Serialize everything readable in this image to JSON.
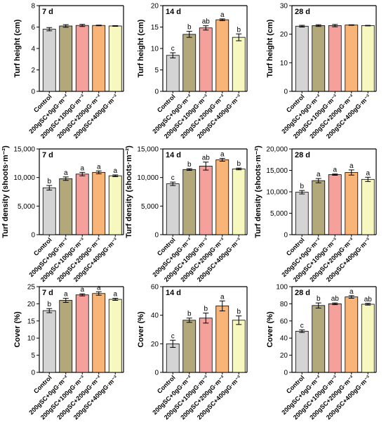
{
  "colors": [
    "#d4d4d4",
    "#b3a87a",
    "#f6a09c",
    "#f9b577",
    "#f7f7c0"
  ],
  "chart_data": [
    {
      "type": "bar",
      "row": 0,
      "col": 0,
      "panel_label": "7 d",
      "ylabel": "Turf height (cm)",
      "ylim": [
        0,
        8
      ],
      "yticks": [
        "0",
        "2",
        "4",
        "6",
        "8"
      ],
      "categories": [
        "Control",
        "200gSC+0gG·m⁻²",
        "200gSC+100gG·m⁻²",
        "200gSC+200gG·m⁻²",
        "200gSC+400gG·m⁻²"
      ],
      "values": [
        5.8,
        6.1,
        6.15,
        6.15,
        6.1
      ],
      "errors": [
        0.15,
        0.12,
        0.1,
        0.03,
        0.03
      ],
      "letters": [
        "",
        "",
        "",
        "",
        ""
      ]
    },
    {
      "type": "bar",
      "row": 0,
      "col": 1,
      "panel_label": "14 d",
      "ylabel": "Turf height (cm)",
      "ylim": [
        0,
        20
      ],
      "yticks": [
        "0",
        "5",
        "10",
        "15",
        "20"
      ],
      "categories": [
        "Control",
        "200gSC+0gG·m⁻²",
        "200gSC+100gG·m⁻²",
        "200gSC+200gG·m⁻²",
        "200gSC+400gG·m⁻²"
      ],
      "values": [
        8.4,
        13.3,
        14.8,
        16.7,
        12.6
      ],
      "errors": [
        0.6,
        0.7,
        0.5,
        0.2,
        0.8
      ],
      "letters": [
        "c",
        "b",
        "ab",
        "a",
        "b"
      ]
    },
    {
      "type": "bar",
      "row": 0,
      "col": 2,
      "panel_label": "28 d",
      "ylabel": "Turf height (cm)",
      "ylim": [
        0,
        30
      ],
      "yticks": [
        "0",
        "10",
        "20",
        "30"
      ],
      "categories": [
        "Control",
        "200gSC+0gG·m⁻²",
        "200gSC+100gG·m⁻²",
        "200gSC+200gG·m⁻²",
        "200gSC+400gG·m⁻²"
      ],
      "values": [
        22.8,
        23.0,
        23.0,
        23.2,
        23.0
      ],
      "errors": [
        0.3,
        0.3,
        0.4,
        0.1,
        0.1
      ],
      "letters": [
        "",
        "",
        "",
        "",
        ""
      ]
    },
    {
      "type": "bar",
      "row": 1,
      "col": 0,
      "panel_label": "7 d",
      "ylabel": "Turf density (shoots·m⁻²)",
      "ylim": [
        0,
        15000
      ],
      "yticks": [
        "0",
        "5,000",
        "10,000",
        "15,000"
      ],
      "categories": [
        "Control",
        "200gSC+0gG·m⁻²",
        "200gSC+100gG·m⁻²",
        "200gSC+200gG·m⁻²",
        "200gSC+400gG·m⁻²"
      ],
      "values": [
        8200,
        9800,
        10600,
        10900,
        10300
      ],
      "errors": [
        400,
        300,
        300,
        250,
        150
      ],
      "letters": [
        "b",
        "a",
        "a",
        "a",
        "a"
      ]
    },
    {
      "type": "bar",
      "row": 1,
      "col": 1,
      "panel_label": "14 d",
      "ylabel": "Turf density (shoots·m⁻²)",
      "ylim": [
        0,
        15000
      ],
      "yticks": [
        "0",
        "5,000",
        "10,000",
        "15,000"
      ],
      "categories": [
        "Control",
        "200gSC+0gG·m⁻²",
        "200gSC+100gG·m⁻²",
        "200gSC+200gG·m⁻²",
        "200gSC+400gG·m⁻²"
      ],
      "values": [
        8900,
        11400,
        12000,
        13100,
        11500
      ],
      "errors": [
        300,
        150,
        700,
        250,
        150
      ],
      "letters": [
        "c",
        "b",
        "ab",
        "a",
        "b"
      ]
    },
    {
      "type": "bar",
      "row": 1,
      "col": 2,
      "panel_label": "28 d",
      "ylabel": "Turf density (shoots·m⁻²)",
      "ylim": [
        0,
        20000
      ],
      "yticks": [
        "0",
        "5,000",
        "10,000",
        "15,000",
        "20,000"
      ],
      "categories": [
        "Control",
        "200gSC+0gG·m⁻²",
        "200gSC+100gG·m⁻²",
        "200gSC+200gG·m⁻²",
        "200gSC+400gG·m⁻²"
      ],
      "values": [
        9900,
        12600,
        14000,
        14500,
        12900
      ],
      "errors": [
        400,
        500,
        150,
        600,
        500
      ],
      "letters": [
        "b",
        "a",
        "a",
        "a",
        "a"
      ]
    },
    {
      "type": "bar",
      "row": 2,
      "col": 0,
      "panel_label": "7 d",
      "ylabel": "Cover (%)",
      "ylim": [
        0,
        25
      ],
      "yticks": [
        "0",
        "5",
        "10",
        "15",
        "20",
        "25"
      ],
      "categories": [
        "Control",
        "200gSC+0gG·m⁻²",
        "200gSC+100gG·m⁻²",
        "200gSC+200gG·m⁻²",
        "200gSC+400gG·m⁻²"
      ],
      "values": [
        18,
        21,
        22.6,
        23,
        21.3
      ],
      "errors": [
        0.6,
        0.6,
        0.3,
        0.5,
        0.3
      ],
      "letters": [
        "b",
        "a",
        "a",
        "a",
        "a"
      ]
    },
    {
      "type": "bar",
      "row": 2,
      "col": 1,
      "panel_label": "14 d",
      "ylabel": "Cover (%)",
      "ylim": [
        0,
        60
      ],
      "yticks": [
        "0",
        "20",
        "40",
        "60"
      ],
      "categories": [
        "Control",
        "200gSC+0gG·m⁻²",
        "200gSC+100gG·m⁻²",
        "200gSC+200gG·m⁻²",
        "200gSC+400gG·m⁻²"
      ],
      "values": [
        20,
        36.5,
        38,
        46.5,
        36.5
      ],
      "errors": [
        2.5,
        1.5,
        3.5,
        3.5,
        3.0
      ],
      "letters": [
        "c",
        "b",
        "b",
        "a",
        "b"
      ]
    },
    {
      "type": "bar",
      "row": 2,
      "col": 2,
      "panel_label": "28 d",
      "ylabel": "Cover (%)",
      "ylim": [
        0,
        100
      ],
      "yticks": [
        "0",
        "20",
        "40",
        "60",
        "80",
        "100"
      ],
      "categories": [
        "Control",
        "200gSC+0gG·m⁻²",
        "200gSC+100gG·m⁻²",
        "200gSC+200gG·m⁻²",
        "200gSC+400gG·m⁻²"
      ],
      "values": [
        48,
        78,
        80,
        88,
        79.5
      ],
      "errors": [
        1.5,
        3,
        1,
        1.5,
        1
      ],
      "letters": [
        "c",
        "b",
        "ab",
        "a",
        "ab"
      ]
    }
  ]
}
